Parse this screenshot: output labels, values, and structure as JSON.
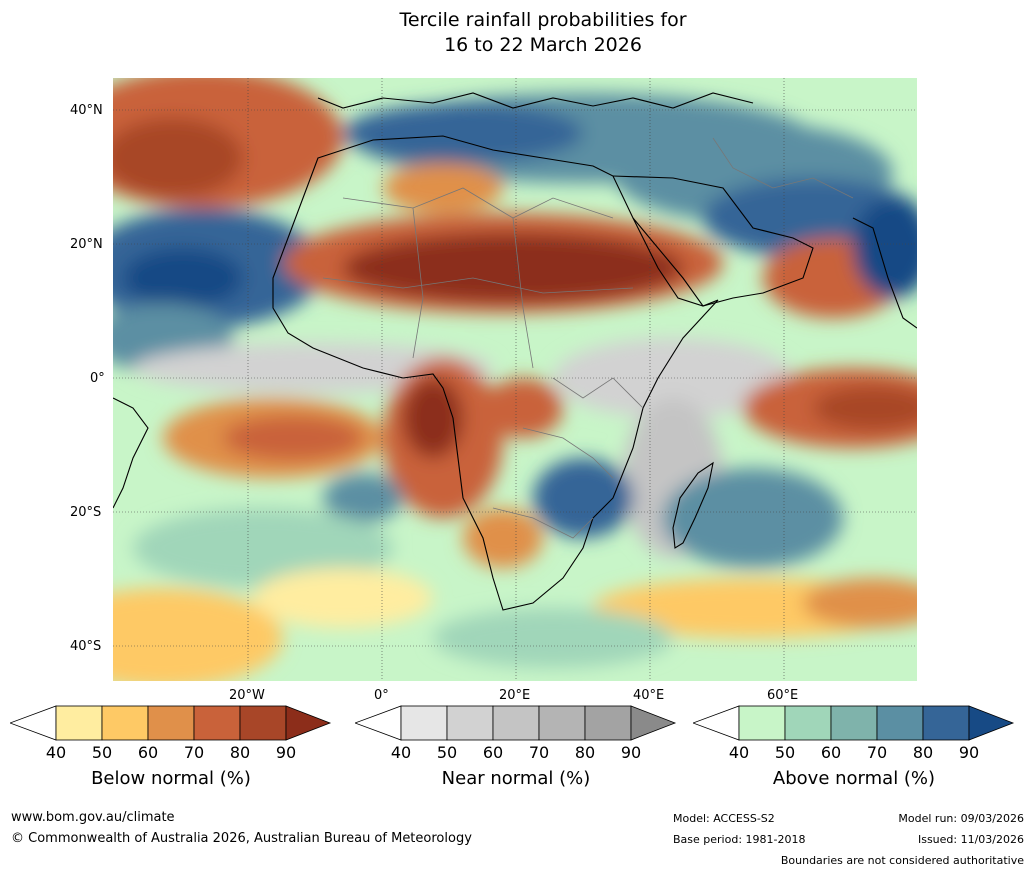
{
  "title_line1": "Tercile rainfall probabilities for",
  "title_line2": "16 to 22 March 2026",
  "lat_labels": [
    "40°N",
    "20°N",
    "0°",
    "20°S",
    "40°S"
  ],
  "lon_labels": [
    "20°W",
    "0°",
    "20°E",
    "40°E",
    "60°E"
  ],
  "colorbars": [
    {
      "title": "Below normal (%)",
      "ticks": [
        "40",
        "50",
        "60",
        "70",
        "80",
        "90"
      ],
      "colors": [
        "#ffffff",
        "#ffeda0",
        "#fec965",
        "#e0904a",
        "#c9623a",
        "#a84628",
        "#8c2d1a"
      ]
    },
    {
      "title": "Near normal (%)",
      "ticks": [
        "40",
        "50",
        "60",
        "70",
        "80",
        "90"
      ],
      "colors": [
        "#ffffff",
        "#e6e6e6",
        "#d2d2d2",
        "#c4c4c4",
        "#b4b4b4",
        "#a3a3a3",
        "#8a8a8a"
      ]
    },
    {
      "title": "Above normal (%)",
      "ticks": [
        "40",
        "50",
        "60",
        "70",
        "80",
        "90"
      ],
      "colors": [
        "#ffffff",
        "#c8f5c8",
        "#a0d6b9",
        "#7fb3ab",
        "#5b8fa3",
        "#356597",
        "#174a85"
      ]
    }
  ],
  "footer": {
    "website": "www.bom.gov.au/climate",
    "copyright": "© Commonwealth of Australia 2026, Australian Bureau of Meteorology",
    "model": "Model: ACCESS-S2",
    "base_period": "Base period: 1981-2018",
    "model_run": "Model run: 09/03/2026",
    "issued": "Issued: 11/03/2026",
    "disclaimer": "Boundaries are not considered authoritative"
  }
}
